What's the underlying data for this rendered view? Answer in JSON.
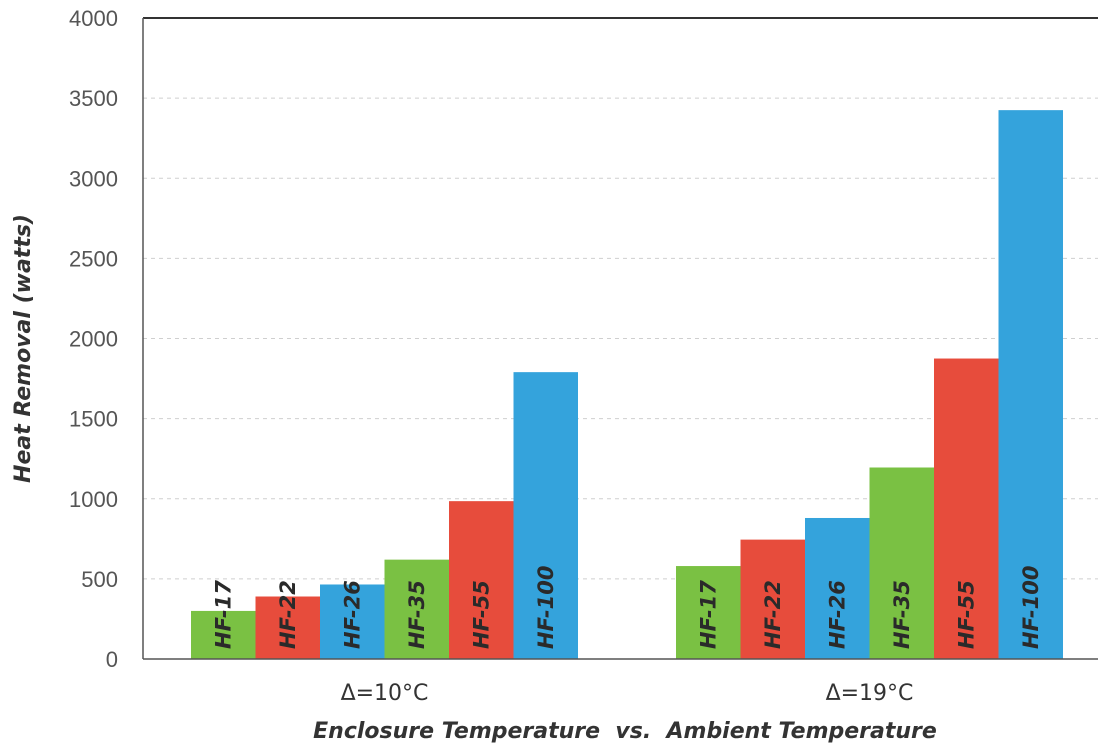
{
  "chart_data": {
    "type": "bar",
    "categories": [
      "Δ=10°C",
      "Δ=19°C"
    ],
    "series": [
      {
        "name": "HF-17",
        "color": "#7ac143",
        "values": [
          300,
          580
        ]
      },
      {
        "name": "HF-22",
        "color": "#e74c3c",
        "values": [
          390,
          745
        ]
      },
      {
        "name": "HF-26",
        "color": "#34a3dc",
        "values": [
          465,
          880
        ]
      },
      {
        "name": "HF-35",
        "color": "#7ac143",
        "values": [
          620,
          1195
        ]
      },
      {
        "name": "HF-55",
        "color": "#e74c3c",
        "values": [
          985,
          1875
        ]
      },
      {
        "name": "HF-100",
        "color": "#34a3dc",
        "values": [
          1790,
          3425
        ]
      }
    ],
    "ylabel": "Heat Removal (watts)",
    "xlabel": "Enclosure Temperature  vs.  Ambient Temperature",
    "ylim": [
      0,
      4000
    ],
    "yticks": [
      0,
      500,
      1000,
      1500,
      2000,
      2500,
      3000,
      3500,
      4000
    ],
    "grid": true,
    "legend": "none"
  }
}
